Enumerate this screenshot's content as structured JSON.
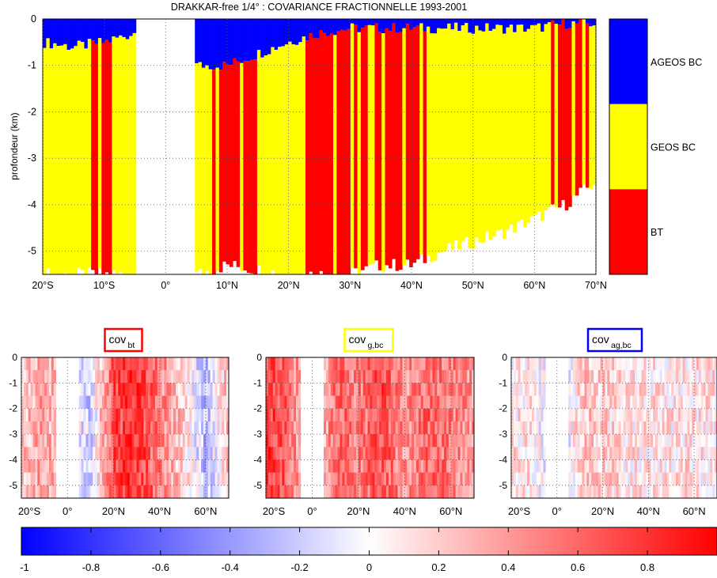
{
  "chart_data": [
    {
      "type": "heatmap",
      "title": "DRAKKAR-free 1/4° : COVARIANCE FRACTIONNELLE 1993-2001",
      "ylabel": "profondeur (km)",
      "xlim": [
        -20,
        70
      ],
      "ylim": [
        -5.5,
        0
      ],
      "x_ticks": [
        -20,
        -10,
        0,
        10,
        20,
        30,
        40,
        50,
        60,
        70
      ],
      "x_tick_labels": [
        "20°S",
        "10°S",
        "0°",
        "10°N",
        "20°N",
        "30°N",
        "40°N",
        "50°N",
        "60°N",
        "70°N"
      ],
      "y_ticks": [
        0,
        -1,
        -2,
        -3,
        -4,
        -5
      ],
      "y_tick_labels": [
        "0",
        "-1",
        "-2",
        "-3",
        "-4",
        "-5"
      ],
      "grid": "dotted",
      "categories": [
        "AGEOS BC",
        "GEOS BC",
        "BT"
      ],
      "category_colors": [
        "#0000ff",
        "#ffff00",
        "#ff0000"
      ],
      "legend_position": "right",
      "dominant_term_profile": {
        "latitude": [
          -20,
          -15,
          -10,
          -5,
          0,
          5,
          10,
          20,
          25,
          30,
          35,
          40,
          45,
          50,
          55,
          60,
          65,
          70
        ],
        "ageos_bc_bottom_depth_km": [
          -0.5,
          -0.6,
          -0.5,
          -0.3,
          null,
          -1.0,
          -1.0,
          -0.5,
          -0.3,
          -0.2,
          -0.2,
          -0.2,
          -0.2,
          -0.2,
          -0.2,
          -0.2,
          -0.1,
          -0.1
        ],
        "bt_dominant": [
          false,
          false,
          true,
          false,
          false,
          false,
          true,
          false,
          true,
          true,
          true,
          true,
          false,
          false,
          false,
          false,
          true,
          true
        ],
        "data_floor_depth_km": [
          -5.5,
          -5.5,
          -5.5,
          -5.5,
          null,
          -5.5,
          -5.3,
          -5.5,
          -5.5,
          -5.5,
          -5.3,
          -5.3,
          -5.0,
          -4.8,
          -4.6,
          -4.3,
          -4.0,
          -3.5
        ]
      }
    },
    {
      "type": "heatmap",
      "title": "cov",
      "title_subscript": "bt",
      "title_box_color": "#ff0000",
      "x_ticks": [
        -20,
        0,
        20,
        40,
        60
      ],
      "x_tick_labels": [
        "20°S",
        "0°",
        "20°N",
        "40°N",
        "60°N"
      ],
      "y_ticks": [
        0,
        -1,
        -2,
        -3,
        -4,
        -5
      ],
      "y_tick_labels": [
        "0",
        "-1",
        "-2",
        "-3",
        "-4",
        "-5"
      ],
      "latitude": [
        -20,
        -10,
        0,
        10,
        20,
        30,
        40,
        50,
        60,
        70
      ],
      "mean_value": [
        0.2,
        0.4,
        0.1,
        -0.2,
        0.7,
        0.8,
        0.5,
        0.2,
        -0.3,
        0.3
      ]
    },
    {
      "type": "heatmap",
      "title": "cov",
      "title_subscript": "g,bc",
      "title_box_color": "#ffff00",
      "x_ticks": [
        -20,
        0,
        20,
        40,
        60
      ],
      "x_tick_labels": [
        "20°S",
        "0°",
        "20°N",
        "40°N",
        "60°N"
      ],
      "y_ticks": [
        0,
        -1,
        -2,
        -3,
        -4,
        -5
      ],
      "y_tick_labels": [
        "0",
        "-1",
        "-2",
        "-3",
        "-4",
        "-5"
      ],
      "latitude": [
        -20,
        -10,
        0,
        10,
        20,
        30,
        40,
        50,
        60,
        70
      ],
      "mean_value": [
        0.8,
        0.6,
        0.0,
        0.6,
        0.5,
        0.7,
        0.4,
        0.6,
        0.5,
        0.4
      ]
    },
    {
      "type": "heatmap",
      "title": "cov",
      "title_subscript": "ag,bc",
      "title_box_color": "#0000ff",
      "x_ticks": [
        -20,
        0,
        20,
        40,
        60
      ],
      "x_tick_labels": [
        "20°S",
        "0°",
        "20°N",
        "40°N",
        "60°N"
      ],
      "y_ticks": [
        0,
        -1,
        -2,
        -3,
        -4,
        -5
      ],
      "y_tick_labels": [
        "0",
        "-1",
        "-2",
        "-3",
        "-4",
        "-5"
      ],
      "latitude": [
        -20,
        -10,
        0,
        10,
        20,
        30,
        40,
        50,
        60,
        70
      ],
      "mean_value": [
        0.1,
        0.1,
        -0.3,
        0.2,
        0.2,
        0.1,
        0.1,
        0.1,
        0.1,
        0.1
      ]
    }
  ],
  "colorbar": {
    "range": [
      -1,
      1
    ],
    "tick_values": [
      -1,
      -0.8,
      -0.6,
      -0.4,
      -0.2,
      0,
      0.2,
      0.4,
      0.6,
      0.8
    ],
    "tick_labels": [
      "-1",
      "-0.8",
      "-0.6",
      "-0.4",
      "-0.2",
      "0",
      "0.2",
      "0.4",
      "0.6",
      "0.8"
    ],
    "low_color": "#0000ff",
    "mid_color": "#ffffff",
    "high_color": "#ff0000"
  }
}
